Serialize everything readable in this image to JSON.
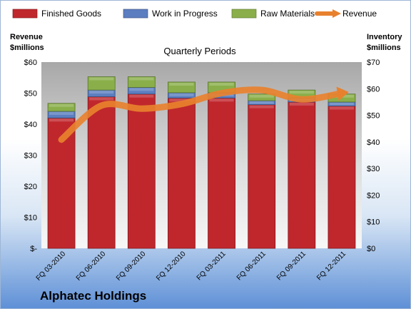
{
  "chart_data": {
    "type": "bar",
    "stacked": true,
    "title": "Quarterly Periods",
    "company": "Alphatec Holdings",
    "categories": [
      "FQ 03-2010",
      "FQ 06-2010",
      "FQ 09-2010",
      "FQ 12-2010",
      "FQ 03-2011",
      "FQ 06-2011",
      "FQ 09-2011",
      "FQ 12-2011"
    ],
    "left_axis": {
      "label_line1": "Revenue",
      "label_line2": "$millions",
      "min": 0,
      "max": 60,
      "ticks": [
        0,
        10,
        20,
        30,
        40,
        50,
        60
      ],
      "tick_labels": [
        "$-",
        "$10",
        "$20",
        "$30",
        "$40",
        "$50",
        "$60"
      ]
    },
    "right_axis": {
      "label_line1": "Inventory",
      "label_line2": "$millions",
      "min": 0,
      "max": 70,
      "ticks": [
        0,
        10,
        20,
        30,
        40,
        50,
        60,
        70
      ],
      "tick_labels": [
        "$0",
        "$10",
        "$20",
        "$30",
        "$40",
        "$50",
        "$60",
        "$70"
      ]
    },
    "series": [
      {
        "name": "Finished Goods",
        "axis": "right",
        "color": "#c0272d",
        "values": [
          49,
          57,
          58,
          56.5,
          56.5,
          54,
          55,
          53.5
        ]
      },
      {
        "name": "Work in Progress",
        "axis": "right",
        "color": "#5b7ec0",
        "values": [
          2.5,
          2.5,
          2.5,
          2,
          2,
          1.5,
          1.5,
          1.5
        ]
      },
      {
        "name": "Raw Materials",
        "axis": "right",
        "color": "#8aaf4a",
        "values": [
          3,
          5,
          4,
          4,
          4,
          2.5,
          3,
          3
        ]
      },
      {
        "name": "Revenue",
        "axis": "left",
        "type": "line",
        "color": "#e8812e",
        "values": [
          35,
          46,
          45,
          46.5,
          50,
          51,
          48,
          50
        ]
      }
    ],
    "legend_position": "top",
    "grid": false
  }
}
